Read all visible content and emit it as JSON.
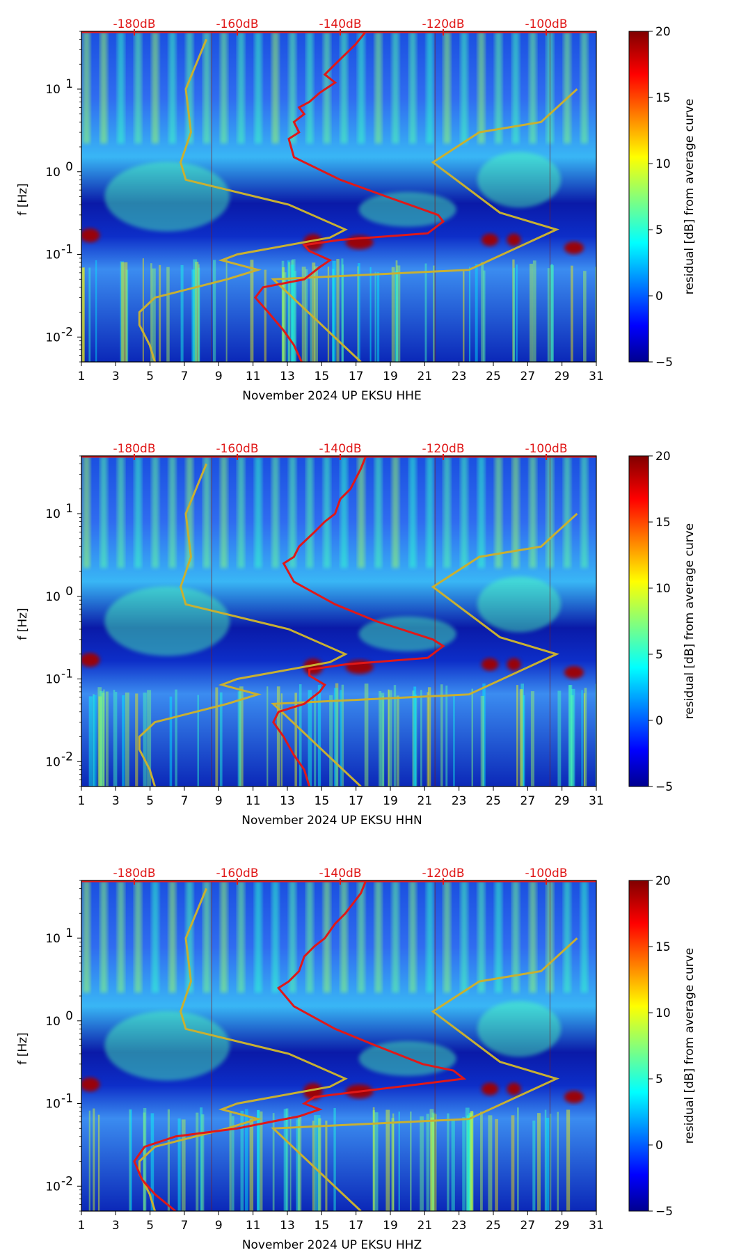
{
  "colors": {
    "psd_curve": "#e01818",
    "noise_model": "#c8b032",
    "top_axis": "#e01818",
    "text": "#000000"
  },
  "colorbar": {
    "label": "residual [dB] from average curve",
    "range": [
      -5,
      20
    ],
    "ticks": [
      "20",
      "15",
      "10",
      "5",
      "0",
      "−5"
    ],
    "colormap": "jet"
  },
  "chart_data": [
    {
      "type": "heatmap",
      "title": "",
      "xlabel": "November 2024 UP EKSU  HHE",
      "ylabel": "f [Hz]",
      "x_range": [
        1,
        31
      ],
      "y_range_log": [
        0.005,
        50
      ],
      "x_ticks": [
        "1",
        "3",
        "5",
        "7",
        "9",
        "11",
        "13",
        "15",
        "17",
        "19",
        "21",
        "23",
        "25",
        "27",
        "29",
        "31"
      ],
      "y_ticks": [
        "10-2",
        "10-1",
        "100",
        "101"
      ],
      "top_axis_ticks": [
        "-180dB",
        "-160dB",
        "-140dB",
        "-120dB",
        "-100dB"
      ],
      "psd_curve": [
        [
          -147.5,
          0.005
        ],
        [
          -149,
          0.008
        ],
        [
          -151,
          0.012
        ],
        [
          -154,
          0.02
        ],
        [
          -156.5,
          0.03
        ],
        [
          -155,
          0.04
        ],
        [
          -147,
          0.05
        ],
        [
          -144,
          0.07
        ],
        [
          -142,
          0.085
        ],
        [
          -146,
          0.11
        ],
        [
          -147,
          0.13
        ],
        [
          -140,
          0.15
        ],
        [
          -123,
          0.18
        ],
        [
          -120,
          0.25
        ],
        [
          -121,
          0.3
        ],
        [
          -131,
          0.5
        ],
        [
          -140,
          0.8
        ],
        [
          -149,
          1.5
        ],
        [
          -150,
          2.5
        ],
        [
          -148,
          3
        ],
        [
          -149,
          4
        ],
        [
          -147,
          5
        ],
        [
          -148,
          6
        ],
        [
          -146,
          7
        ],
        [
          -144,
          9
        ],
        [
          -141,
          12
        ],
        [
          -143,
          15
        ],
        [
          -141,
          20
        ],
        [
          -137,
          35
        ],
        [
          -135,
          50
        ]
      ],
      "noise_model": [
        [
          -176,
          0.005
        ],
        [
          -177,
          0.008
        ],
        [
          -179,
          0.014
        ],
        [
          -179,
          0.02
        ],
        [
          -176,
          0.03
        ],
        [
          -162,
          0.05
        ],
        [
          -156,
          0.065
        ],
        [
          -163,
          0.085
        ],
        [
          -160,
          0.1
        ],
        [
          -142,
          0.16
        ],
        [
          -139,
          0.2
        ],
        [
          -150,
          0.4
        ],
        [
          -170,
          0.8
        ],
        [
          -171,
          1.3
        ],
        [
          -169,
          3
        ],
        [
          -170,
          10
        ],
        [
          -168,
          20
        ],
        [
          -166,
          40
        ]
      ],
      "high_noise_model": [
        [
          -136,
          0.005
        ],
        [
          -153,
          0.05
        ],
        [
          -115,
          0.065
        ],
        [
          -98,
          0.2
        ],
        [
          -109,
          0.32
        ],
        [
          -122,
          1.3
        ],
        [
          -113,
          3
        ],
        [
          -101,
          4
        ],
        [
          -94,
          10
        ]
      ]
    },
    {
      "type": "heatmap",
      "title": "",
      "xlabel": "November 2024 UP EKSU  HHN",
      "ylabel": "f [Hz]",
      "x_range": [
        1,
        31
      ],
      "y_range_log": [
        0.005,
        50
      ],
      "x_ticks": [
        "1",
        "3",
        "5",
        "7",
        "9",
        "11",
        "13",
        "15",
        "17",
        "19",
        "21",
        "23",
        "25",
        "27",
        "29",
        "31"
      ],
      "y_ticks": [
        "10-2",
        "10-1",
        "100",
        "101"
      ],
      "top_axis_ticks": [
        "-180dB",
        "-160dB",
        "-140dB",
        "-120dB",
        "-100dB"
      ],
      "psd_curve": [
        [
          -146,
          0.005
        ],
        [
          -147,
          0.008
        ],
        [
          -149,
          0.012
        ],
        [
          -151,
          0.02
        ],
        [
          -153,
          0.03
        ],
        [
          -152,
          0.04
        ],
        [
          -147,
          0.05
        ],
        [
          -144,
          0.07
        ],
        [
          -143,
          0.085
        ],
        [
          -146,
          0.11
        ],
        [
          -146,
          0.13
        ],
        [
          -139,
          0.15
        ],
        [
          -123,
          0.18
        ],
        [
          -120,
          0.25
        ],
        [
          -122,
          0.3
        ],
        [
          -133,
          0.5
        ],
        [
          -141,
          0.8
        ],
        [
          -149,
          1.5
        ],
        [
          -151,
          2.5
        ],
        [
          -149,
          3
        ],
        [
          -148,
          4
        ],
        [
          -145,
          6
        ],
        [
          -143,
          8
        ],
        [
          -141,
          10
        ],
        [
          -140,
          15
        ],
        [
          -138,
          20
        ],
        [
          -136,
          35
        ],
        [
          -135,
          50
        ]
      ],
      "noise_model": [
        [
          -176,
          0.005
        ],
        [
          -177,
          0.008
        ],
        [
          -179,
          0.014
        ],
        [
          -179,
          0.02
        ],
        [
          -176,
          0.03
        ],
        [
          -162,
          0.05
        ],
        [
          -156,
          0.065
        ],
        [
          -163,
          0.085
        ],
        [
          -160,
          0.1
        ],
        [
          -142,
          0.16
        ],
        [
          -139,
          0.2
        ],
        [
          -150,
          0.4
        ],
        [
          -170,
          0.8
        ],
        [
          -171,
          1.3
        ],
        [
          -169,
          3
        ],
        [
          -170,
          10
        ],
        [
          -168,
          20
        ],
        [
          -166,
          40
        ]
      ],
      "high_noise_model": [
        [
          -136,
          0.005
        ],
        [
          -153,
          0.05
        ],
        [
          -115,
          0.065
        ],
        [
          -98,
          0.2
        ],
        [
          -109,
          0.32
        ],
        [
          -122,
          1.3
        ],
        [
          -113,
          3
        ],
        [
          -101,
          4
        ],
        [
          -94,
          10
        ]
      ]
    },
    {
      "type": "heatmap",
      "title": "",
      "xlabel": "November 2024 UP EKSU  HHZ",
      "ylabel": "f [Hz]",
      "x_range": [
        1,
        31
      ],
      "y_range_log": [
        0.005,
        50
      ],
      "x_ticks": [
        "1",
        "3",
        "5",
        "7",
        "9",
        "11",
        "13",
        "15",
        "17",
        "19",
        "21",
        "23",
        "25",
        "27",
        "29",
        "31"
      ],
      "y_ticks": [
        "10-2",
        "10-1",
        "100",
        "101"
      ],
      "top_axis_ticks": [
        "-180dB",
        "-160dB",
        "-140dB",
        "-120dB",
        "-100dB"
      ],
      "psd_curve": [
        [
          -172,
          0.005
        ],
        [
          -176,
          0.008
        ],
        [
          -178.5,
          0.012
        ],
        [
          -180,
          0.02
        ],
        [
          -178,
          0.03
        ],
        [
          -172,
          0.04
        ],
        [
          -160,
          0.05
        ],
        [
          -148,
          0.07
        ],
        [
          -144,
          0.085
        ],
        [
          -147,
          0.1
        ],
        [
          -145,
          0.12
        ],
        [
          -125,
          0.17
        ],
        [
          -116,
          0.2
        ],
        [
          -118,
          0.25
        ],
        [
          -124,
          0.3
        ],
        [
          -133,
          0.5
        ],
        [
          -141,
          0.8
        ],
        [
          -149,
          1.5
        ],
        [
          -152,
          2.5
        ],
        [
          -150,
          3
        ],
        [
          -148,
          4
        ],
        [
          -147,
          6
        ],
        [
          -145,
          8
        ],
        [
          -143,
          10
        ],
        [
          -141,
          15
        ],
        [
          -139,
          20
        ],
        [
          -136,
          35
        ],
        [
          -135,
          50
        ]
      ],
      "noise_model": [
        [
          -176,
          0.005
        ],
        [
          -177,
          0.008
        ],
        [
          -179,
          0.014
        ],
        [
          -179,
          0.02
        ],
        [
          -176,
          0.03
        ],
        [
          -162,
          0.05
        ],
        [
          -156,
          0.065
        ],
        [
          -163,
          0.085
        ],
        [
          -160,
          0.1
        ],
        [
          -142,
          0.16
        ],
        [
          -139,
          0.2
        ],
        [
          -150,
          0.4
        ],
        [
          -170,
          0.8
        ],
        [
          -171,
          1.3
        ],
        [
          -169,
          3
        ],
        [
          -170,
          10
        ],
        [
          -168,
          20
        ],
        [
          -166,
          40
        ]
      ],
      "high_noise_model": [
        [
          -136,
          0.005
        ],
        [
          -153,
          0.05
        ],
        [
          -115,
          0.065
        ],
        [
          -98,
          0.2
        ],
        [
          -109,
          0.32
        ],
        [
          -122,
          1.3
        ],
        [
          -113,
          3
        ],
        [
          -101,
          4
        ],
        [
          -94,
          10
        ]
      ]
    }
  ]
}
